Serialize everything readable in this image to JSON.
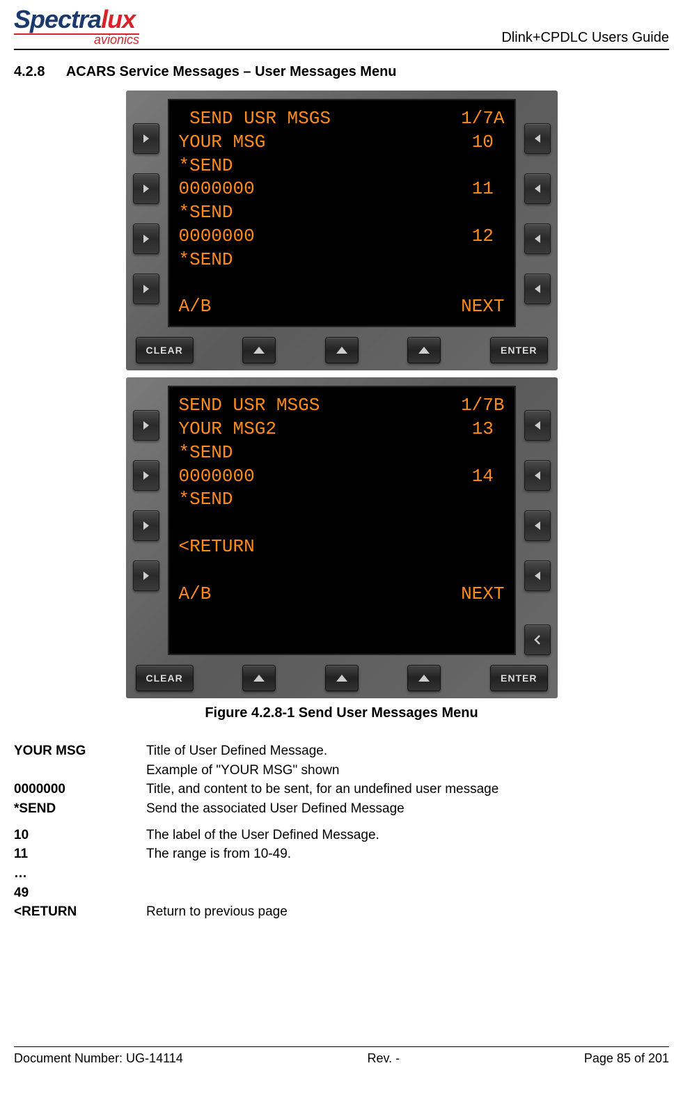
{
  "header": {
    "logo_main_1": "Spectra",
    "logo_main_2": "lux",
    "logo_sub": "avionics",
    "guide_title": "Dlink+CPDLC Users Guide"
  },
  "section": {
    "number": "4.2.8",
    "title": "ACARS Service Messages – User Messages Menu"
  },
  "panels": [
    {
      "lines": [
        {
          "left": " SEND USR MSGS",
          "right": "1/7A"
        },
        {
          "left": "YOUR MSG",
          "right": "10 "
        },
        {
          "left": "*SEND",
          "right": ""
        },
        {
          "left": "0000000",
          "right": "11 "
        },
        {
          "left": "*SEND",
          "right": ""
        },
        {
          "left": "0000000",
          "right": "12 "
        },
        {
          "left": "*SEND",
          "right": ""
        },
        {
          "left": "",
          "right": "",
          "blank": true
        },
        {
          "left": "A/B",
          "right": "NEXT"
        }
      ],
      "left_button_count": 4,
      "right_button_count": 4,
      "bottom_right_arrow": false
    },
    {
      "lines": [
        {
          "left": "SEND USR MSGS",
          "right": "1/7B"
        },
        {
          "left": "YOUR MSG2",
          "right": "13 "
        },
        {
          "left": "*SEND",
          "right": ""
        },
        {
          "left": "0000000",
          "right": "14 "
        },
        {
          "left": "*SEND",
          "right": ""
        },
        {
          "left": "",
          "right": "",
          "blank": true
        },
        {
          "left": "<RETURN",
          "right": ""
        },
        {
          "left": "",
          "right": "",
          "blank": true
        },
        {
          "left": "A/B",
          "right": "NEXT"
        }
      ],
      "left_button_count": 4,
      "right_button_count": 4,
      "bottom_right_arrow": true
    }
  ],
  "buttons": {
    "clear": "CLEAR",
    "enter": "ENTER"
  },
  "figure_caption": "Figure 4.2.8-1 Send User Messages Menu",
  "definitions": [
    {
      "term": "YOUR MSG",
      "desc": "Title of User Defined Message."
    },
    {
      "term": "",
      "desc": "Example of \"YOUR MSG\" shown"
    },
    {
      "term": "0000000",
      "desc": "Title, and content to be sent, for an undefined user message"
    },
    {
      "term": "*SEND",
      "desc": "Send the associated User Defined Message",
      "gap_after": true
    },
    {
      "term": "10",
      "desc": "The label of the User Defined Message."
    },
    {
      "term": "11",
      "desc": "The range is from 10-49."
    },
    {
      "term": "…",
      "desc": ""
    },
    {
      "term": "49",
      "desc": ""
    },
    {
      "term": "<RETURN",
      "desc": "Return to previous page"
    }
  ],
  "footer": {
    "doc_number": "Document Number:  UG-14114",
    "rev": "Rev. -",
    "page": "Page 85 of 201"
  },
  "colors": {
    "screen_text": "#ff8c1a",
    "screen_bg": "#000000",
    "panel_bg": "#6a6a6a",
    "logo_blue": "#1a3a6e",
    "logo_red": "#d8232a"
  }
}
